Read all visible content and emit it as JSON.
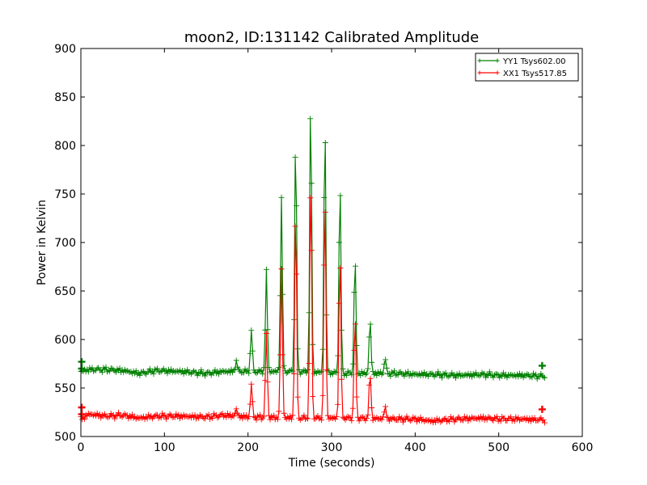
{
  "chart_data": {
    "type": "line",
    "title": "moon2, ID:131142 Calibrated Amplitude",
    "xlabel": "Time (seconds)",
    "ylabel": "Power in Kelvin",
    "xlim": [
      0,
      600
    ],
    "ylim": [
      500,
      900
    ],
    "xticks": [
      0,
      100,
      200,
      300,
      400,
      500,
      600
    ],
    "yticks": [
      500,
      550,
      600,
      650,
      700,
      750,
      800,
      850,
      900
    ],
    "grid": false,
    "legend_position": "top-right",
    "x_end": 556,
    "sample_step": 1.5,
    "series": [
      {
        "name": "YY1 Tsys602.00",
        "color": "#008000",
        "marker": "+",
        "baseline": [
          [
            0,
            567
          ],
          [
            10,
            569
          ],
          [
            30,
            569
          ],
          [
            50,
            568
          ],
          [
            70,
            565
          ],
          [
            90,
            568
          ],
          [
            120,
            567
          ],
          [
            150,
            565
          ],
          [
            170,
            567
          ],
          [
            200,
            567
          ],
          [
            260,
            567
          ],
          [
            320,
            565
          ],
          [
            380,
            565
          ],
          [
            400,
            564
          ],
          [
            420,
            564
          ],
          [
            450,
            563
          ],
          [
            480,
            564
          ],
          [
            500,
            563
          ],
          [
            530,
            563
          ],
          [
            556,
            562
          ]
        ],
        "peaks": [
          [
            186,
            578
          ],
          [
            204,
            610
          ],
          [
            222,
            670
          ],
          [
            240,
            748
          ],
          [
            257,
            812
          ],
          [
            275,
            851
          ],
          [
            292,
            828
          ],
          [
            310,
            765
          ],
          [
            328,
            686
          ],
          [
            346,
            620
          ],
          [
            364,
            580
          ]
        ],
        "endpoints": [
          [
            1,
            577
          ],
          [
            1,
            570
          ],
          [
            552,
            573
          ]
        ]
      },
      {
        "name": "XX1 Tsys517.85",
        "color": "#ff0000",
        "marker": "+",
        "baseline": [
          [
            0,
            518
          ],
          [
            10,
            523
          ],
          [
            30,
            521
          ],
          [
            50,
            522
          ],
          [
            70,
            519
          ],
          [
            90,
            521
          ],
          [
            120,
            521
          ],
          [
            150,
            520
          ],
          [
            170,
            522
          ],
          [
            200,
            520
          ],
          [
            260,
            519
          ],
          [
            320,
            519
          ],
          [
            380,
            518
          ],
          [
            400,
            518
          ],
          [
            420,
            516
          ],
          [
            450,
            518
          ],
          [
            480,
            519
          ],
          [
            500,
            518
          ],
          [
            530,
            518
          ],
          [
            556,
            517
          ]
        ],
        "peaks": [
          [
            186,
            528
          ],
          [
            204,
            553
          ],
          [
            222,
            605
          ],
          [
            240,
            672
          ],
          [
            257,
            735
          ],
          [
            275,
            768
          ],
          [
            292,
            750
          ],
          [
            310,
            690
          ],
          [
            328,
            622
          ],
          [
            346,
            565
          ],
          [
            364,
            530
          ]
        ],
        "endpoints": [
          [
            1,
            530
          ],
          [
            1,
            523
          ],
          [
            552,
            528
          ]
        ]
      }
    ]
  }
}
